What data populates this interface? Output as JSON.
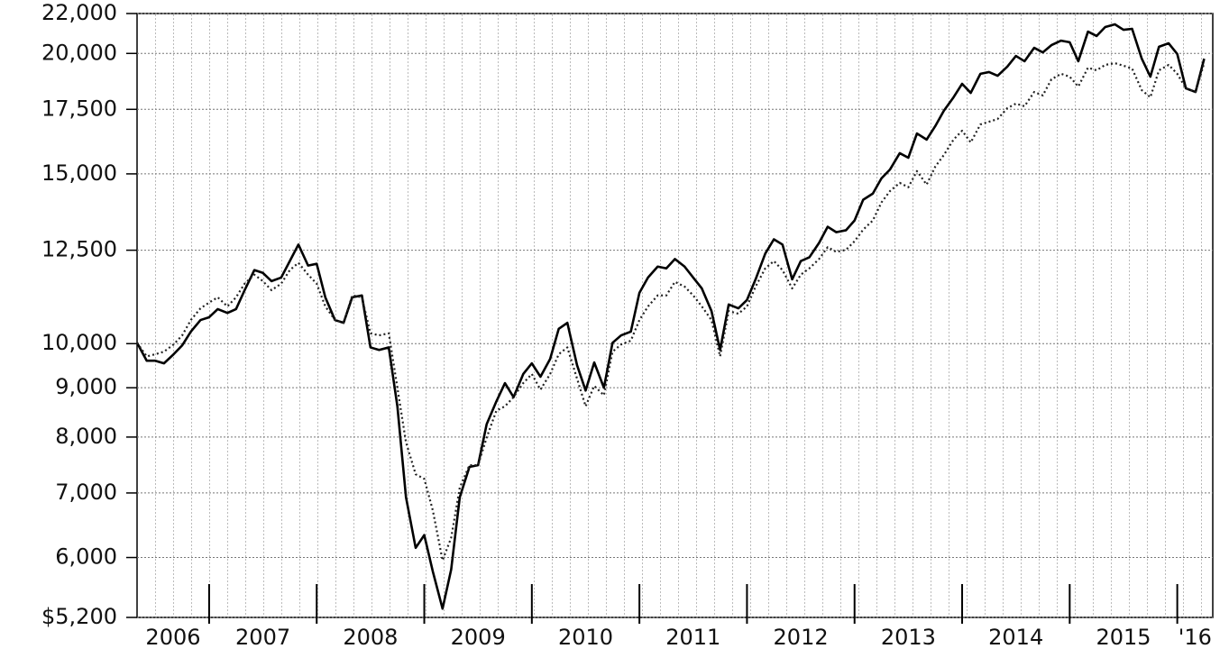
{
  "chart_data": {
    "type": "line",
    "log_y": true,
    "grid": true,
    "categories": [
      "2006",
      "2007",
      "2008",
      "2009",
      "2010",
      "2011",
      "2012",
      "2013",
      "2014",
      "2015",
      "'16"
    ],
    "x": [
      2006.33,
      2006.42,
      2006.5,
      2006.58,
      2006.67,
      2006.75,
      2006.83,
      2006.92,
      2007.0,
      2007.08,
      2007.17,
      2007.25,
      2007.33,
      2007.42,
      2007.5,
      2007.58,
      2007.67,
      2007.75,
      2007.83,
      2007.92,
      2008.0,
      2008.08,
      2008.17,
      2008.25,
      2008.33,
      2008.42,
      2008.5,
      2008.58,
      2008.67,
      2008.75,
      2008.83,
      2008.92,
      2009.0,
      2009.08,
      2009.17,
      2009.25,
      2009.33,
      2009.42,
      2009.5,
      2009.58,
      2009.67,
      2009.75,
      2009.83,
      2009.92,
      2010.0,
      2010.08,
      2010.17,
      2010.25,
      2010.33,
      2010.42,
      2010.5,
      2010.58,
      2010.67,
      2010.75,
      2010.83,
      2010.92,
      2011.0,
      2011.08,
      2011.17,
      2011.25,
      2011.33,
      2011.42,
      2011.5,
      2011.58,
      2011.67,
      2011.75,
      2011.83,
      2011.92,
      2012.0,
      2012.08,
      2012.17,
      2012.25,
      2012.33,
      2012.42,
      2012.5,
      2012.58,
      2012.67,
      2012.75,
      2012.83,
      2012.92,
      2013.0,
      2013.08,
      2013.17,
      2013.25,
      2013.33,
      2013.42,
      2013.5,
      2013.58,
      2013.67,
      2013.75,
      2013.83,
      2013.92,
      2014.0,
      2014.08,
      2014.17,
      2014.25,
      2014.33,
      2014.42,
      2014.5,
      2014.58,
      2014.67,
      2014.75,
      2014.83,
      2014.92,
      2015.0,
      2015.08,
      2015.17,
      2015.25,
      2015.33,
      2015.42,
      2015.5,
      2015.58,
      2015.67,
      2015.75,
      2015.83,
      2015.92,
      2016.0,
      2016.08,
      2016.17,
      2016.25
    ],
    "series": [
      {
        "color": "#000000",
        "style": "solid",
        "values": [
          10020,
          9600,
          9600,
          9540,
          9750,
          9960,
          10290,
          10580,
          10650,
          10860,
          10760,
          10860,
          11360,
          11920,
          11840,
          11610,
          11710,
          12180,
          12670,
          12050,
          12100,
          11170,
          10580,
          10510,
          11170,
          11220,
          9910,
          9850,
          9910,
          8610,
          6930,
          6140,
          6330,
          5800,
          5310,
          5830,
          6930,
          7450,
          7480,
          8250,
          8710,
          9100,
          8800,
          9300,
          9540,
          9240,
          9640,
          10360,
          10510,
          9500,
          8940,
          9560,
          9000,
          10020,
          10200,
          10290,
          11290,
          11710,
          12020,
          11970,
          12240,
          12020,
          11710,
          11410,
          10810,
          9850,
          10980,
          10880,
          11100,
          11660,
          12400,
          12830,
          12670,
          11660,
          12180,
          12290,
          12720,
          13220,
          13050,
          13110,
          13420,
          14100,
          14310,
          14840,
          15160,
          15760,
          15590,
          16520,
          16280,
          16810,
          17440,
          18010,
          18600,
          18200,
          19050,
          19130,
          18960,
          19380,
          19880,
          19630,
          20270,
          20050,
          20400,
          20620,
          20540,
          19630,
          21070,
          20850,
          21300,
          21440,
          21160,
          21210,
          19750,
          18920,
          20320,
          20490,
          19970,
          18400,
          18240,
          19750
        ]
      },
      {
        "color": "#222222",
        "style": "dotted",
        "values": [
          10020,
          9700,
          9750,
          9810,
          9980,
          10200,
          10580,
          10880,
          11030,
          11170,
          10930,
          11170,
          11540,
          11790,
          11610,
          11360,
          11540,
          11920,
          12130,
          11790,
          11540,
          10930,
          10580,
          10510,
          11220,
          11170,
          10250,
          10200,
          10250,
          9000,
          7900,
          7320,
          7240,
          6710,
          5960,
          6290,
          7090,
          7480,
          7480,
          7990,
          8520,
          8610,
          8800,
          9100,
          9300,
          8960,
          9300,
          9750,
          9910,
          9200,
          8610,
          9040,
          8840,
          9810,
          9980,
          10070,
          10580,
          10930,
          11220,
          11220,
          11590,
          11460,
          11220,
          10930,
          10580,
          9700,
          10810,
          10740,
          10930,
          11460,
          11970,
          12180,
          11920,
          11410,
          11790,
          11970,
          12240,
          12590,
          12450,
          12510,
          12770,
          13130,
          13420,
          14010,
          14400,
          14680,
          14530,
          15100,
          14620,
          15260,
          15690,
          16280,
          16630,
          16170,
          16880,
          16990,
          17100,
          17550,
          17740,
          17630,
          18240,
          18090,
          18800,
          19050,
          18920,
          18480,
          19330,
          19210,
          19460,
          19540,
          19420,
          19290,
          18320,
          18010,
          19210,
          19460,
          19050,
          18400,
          18240,
          19540
        ]
      }
    ],
    "xlim": [
      2006.33,
      2016.33
    ],
    "xticks": [
      2007,
      2008,
      2009,
      2010,
      2011,
      2012,
      2013,
      2014,
      2015,
      2016
    ],
    "ylim": [
      5200,
      22000
    ],
    "yticks": [
      {
        "value": 5200,
        "label": "$5,200"
      },
      {
        "value": 6000,
        "label": "6,000"
      },
      {
        "value": 7000,
        "label": "7,000"
      },
      {
        "value": 8000,
        "label": "8,000"
      },
      {
        "value": 9000,
        "label": "9,000"
      },
      {
        "value": 10000,
        "label": "10,000"
      },
      {
        "value": 12500,
        "label": "12,500"
      },
      {
        "value": 15000,
        "label": "15,000"
      },
      {
        "value": 17500,
        "label": "17,500"
      },
      {
        "value": 20000,
        "label": "20,000"
      },
      {
        "value": 22000,
        "label": "22,000"
      }
    ]
  }
}
